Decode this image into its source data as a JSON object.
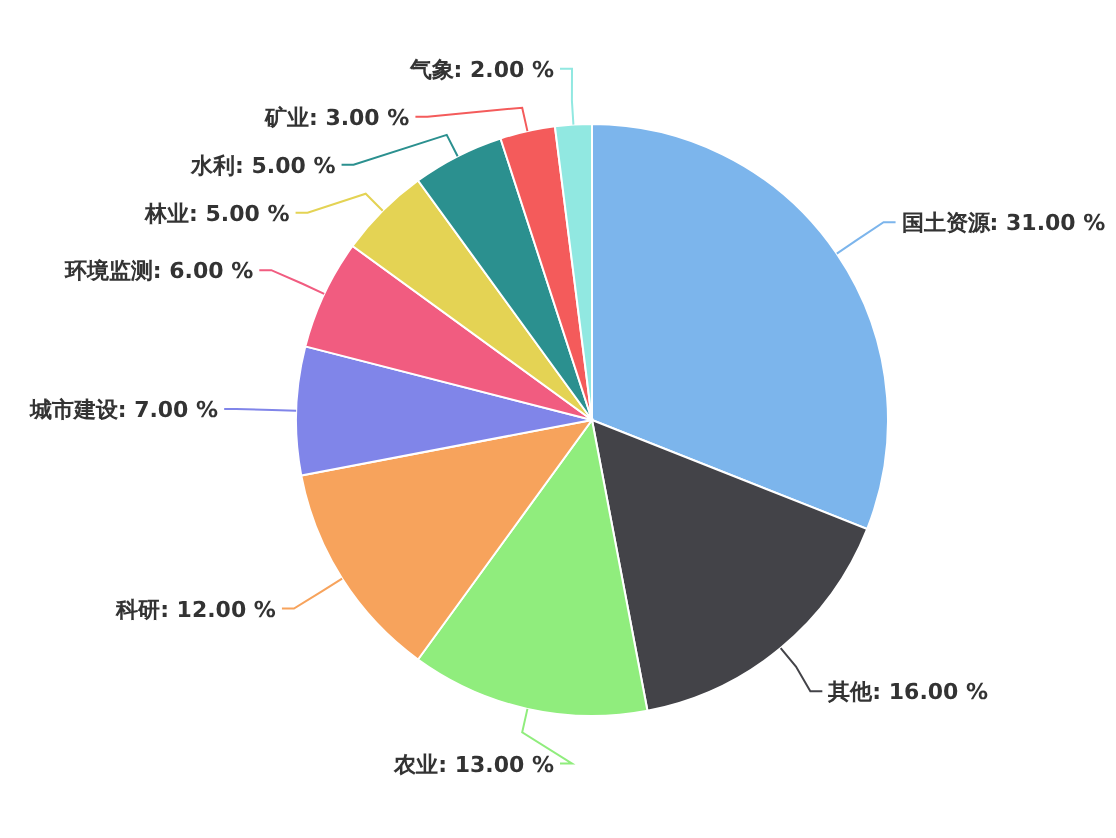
{
  "chart_data": {
    "type": "pie",
    "categories": [
      "国土资源",
      "其他",
      "农业",
      "科研",
      "城市建设",
      "环境监测",
      "林业",
      "水利",
      "矿业",
      "气象"
    ],
    "values": [
      31,
      16,
      13,
      12,
      7,
      6,
      5,
      5,
      3,
      2
    ],
    "value_labels": [
      "31.00 %",
      "16.00 %",
      "13.00 %",
      "12.00 %",
      "7.00 %",
      "6.00 %",
      "5.00 %",
      "5.00 %",
      "3.00 %",
      "2.00 %"
    ],
    "colors": [
      "#7cb5ec",
      "#434348",
      "#90ed7d",
      "#f7a35c",
      "#8085e9",
      "#f15c80",
      "#e4d354",
      "#2b908f",
      "#f45b5b",
      "#91e8e1"
    ],
    "legend": false
  }
}
